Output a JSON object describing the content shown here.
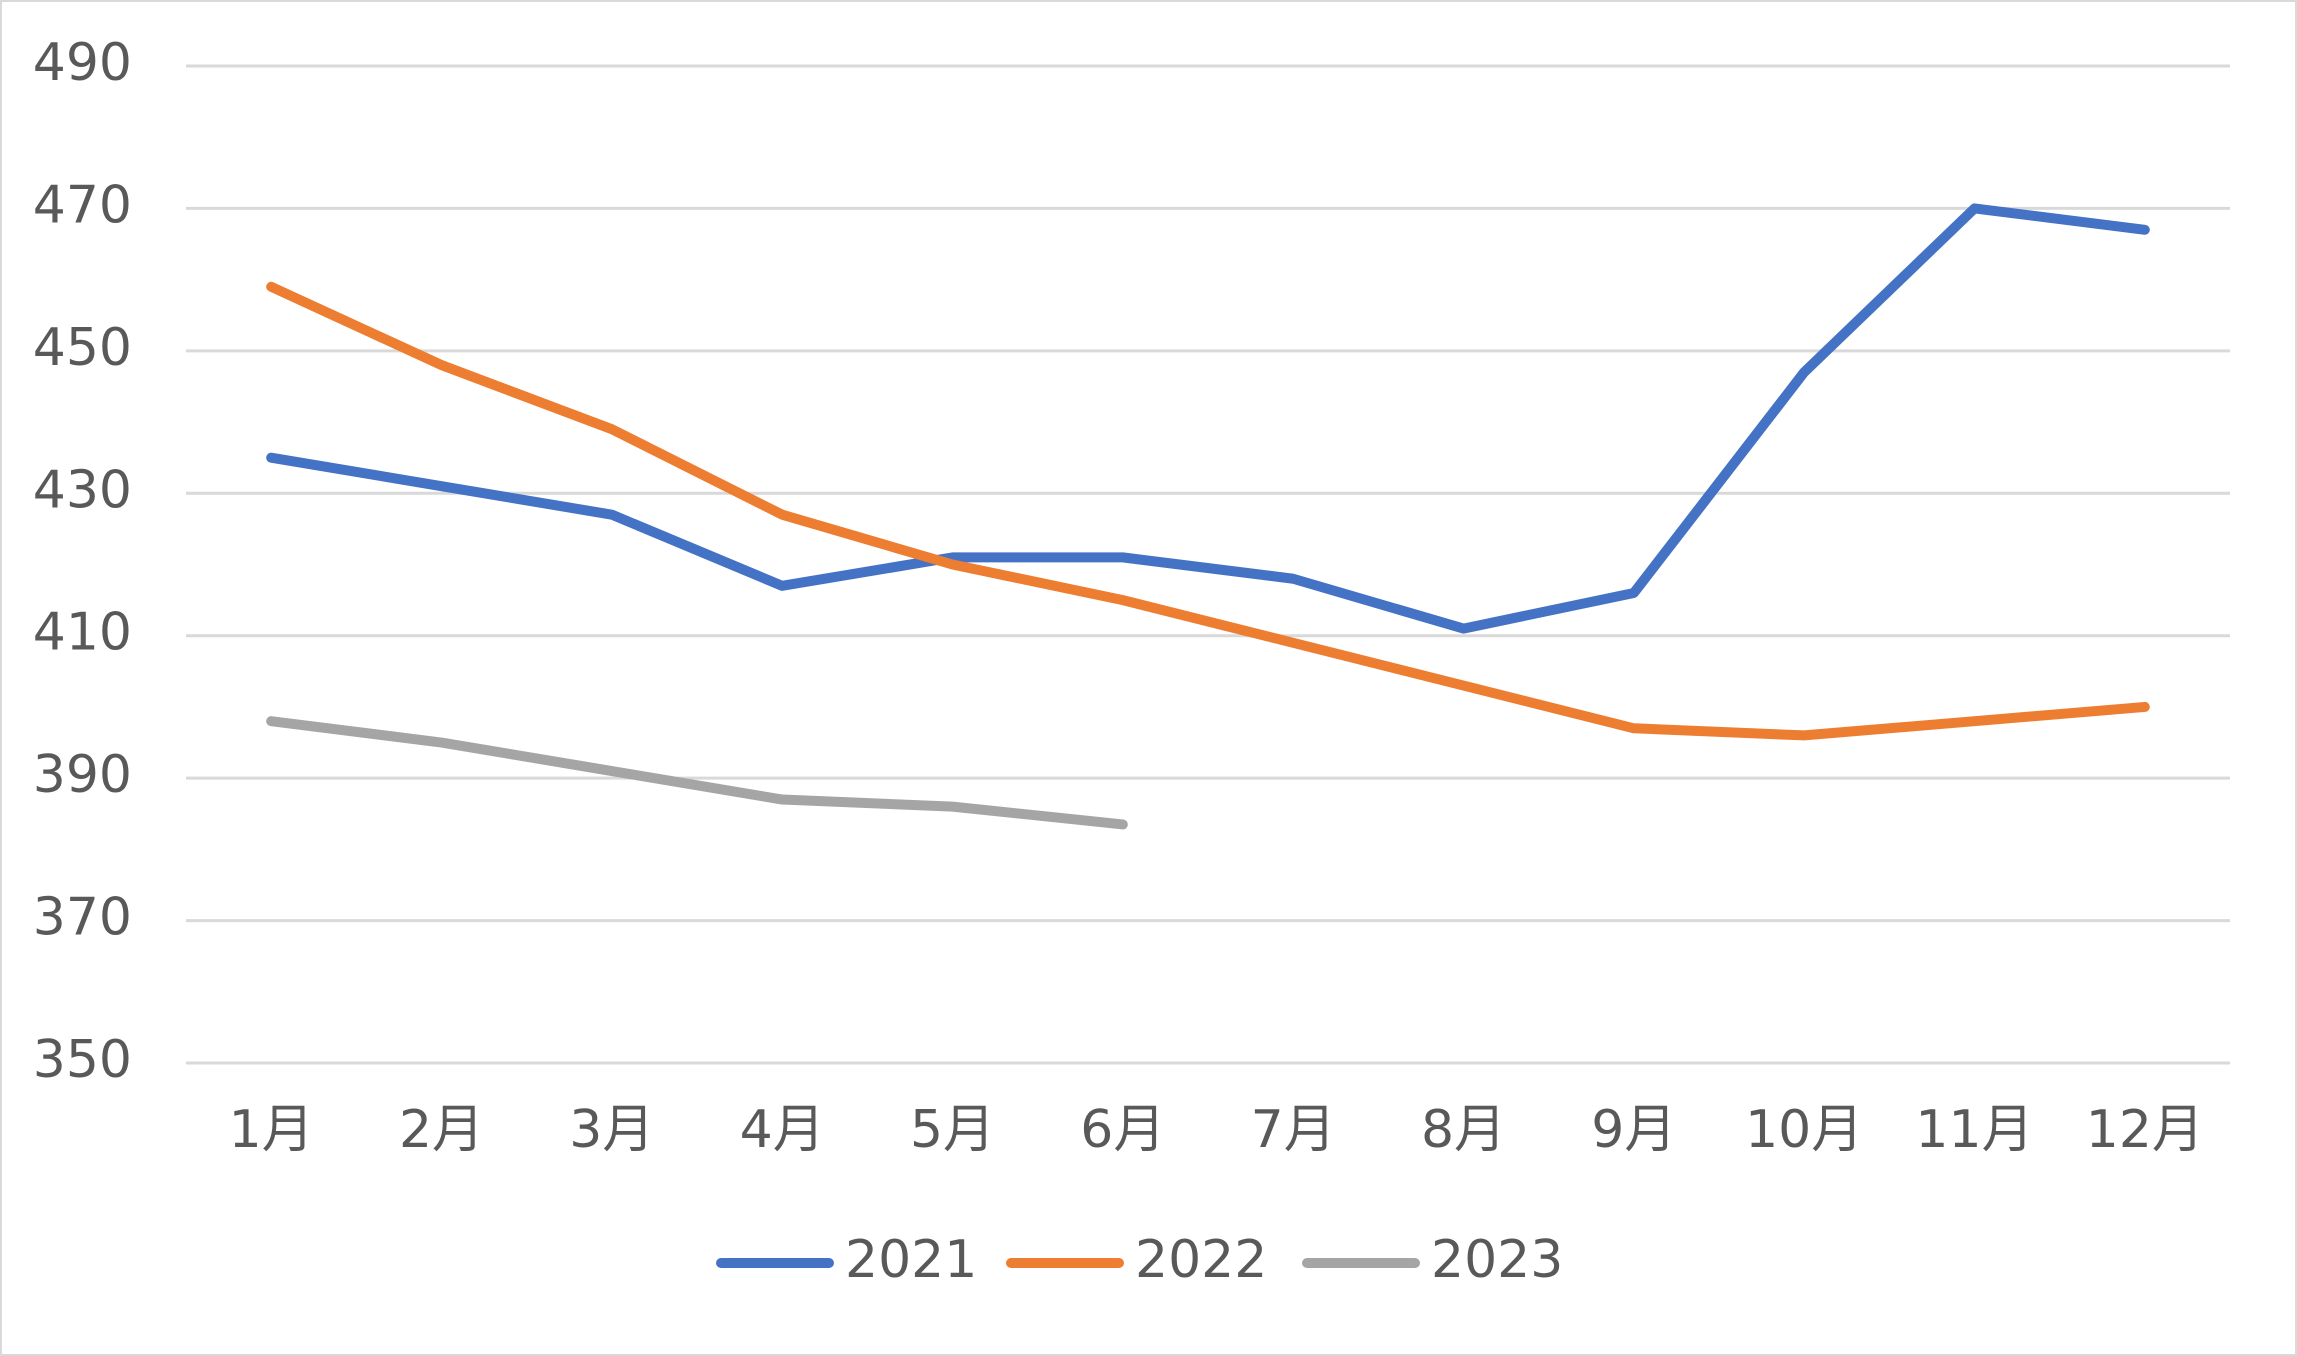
{
  "chart_data": {
    "type": "line",
    "categories": [
      "1月",
      "2月",
      "3月",
      "4月",
      "5月",
      "6月",
      "7月",
      "8月",
      "9月",
      "10月",
      "11月",
      "12月"
    ],
    "series": [
      {
        "name": "2021",
        "color": "#4472c4",
        "values": [
          435,
          431,
          427,
          417,
          421,
          421,
          418,
          411,
          416,
          447,
          470,
          467
        ]
      },
      {
        "name": "2022",
        "color": "#ed7d31",
        "values": [
          459,
          448,
          439,
          427,
          420,
          415,
          409,
          403,
          397,
          396,
          398,
          400
        ]
      },
      {
        "name": "2023",
        "color": "#a5a5a5",
        "values": [
          398,
          395,
          391,
          387,
          386,
          383.5,
          null,
          null,
          null,
          null,
          null,
          null
        ]
      }
    ],
    "ylim": [
      350,
      490
    ],
    "yticks": [
      350,
      370,
      390,
      410,
      430,
      450,
      470,
      490
    ],
    "grid": true,
    "legend": "bottom"
  }
}
